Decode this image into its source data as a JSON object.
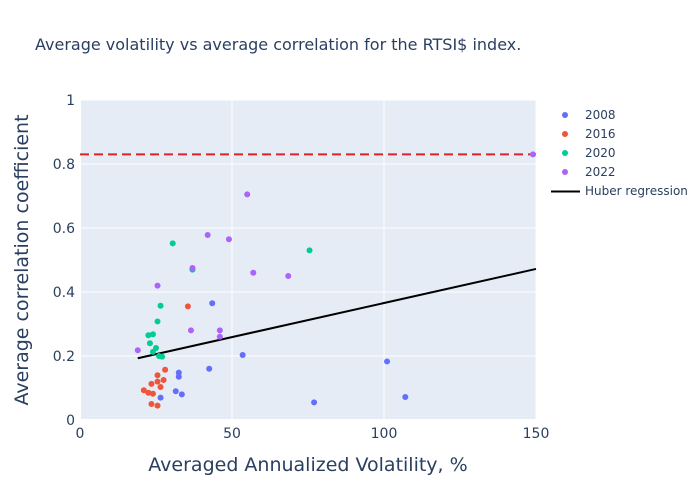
{
  "chart_data": {
    "type": "scatter",
    "title": "Average volatility vs average correlation for the RTSI$ index.",
    "xlabel": "Averaged Annualized Volatility, %",
    "ylabel": "Average correlation coefficient",
    "xlim": [
      0,
      150
    ],
    "ylim": [
      0,
      1
    ],
    "x_ticks": [
      "0",
      "50",
      "100",
      "150"
    ],
    "y_ticks": [
      "0",
      "0.2",
      "0.4",
      "0.6",
      "0.8",
      "1"
    ],
    "grid": true,
    "legend_position": "right",
    "series": [
      {
        "name": "2008",
        "color": "#636efa",
        "points": [
          [
            26.5,
            0.07
          ],
          [
            31.5,
            0.09
          ],
          [
            33.5,
            0.08
          ],
          [
            32.5,
            0.135
          ],
          [
            32.5,
            0.148
          ],
          [
            42.5,
            0.16
          ],
          [
            43.5,
            0.365
          ],
          [
            53.5,
            0.203
          ],
          [
            77,
            0.055
          ],
          [
            101,
            0.183
          ],
          [
            107,
            0.072
          ]
        ]
      },
      {
        "name": "2016",
        "color": "#ef553b",
        "points": [
          [
            21,
            0.093
          ],
          [
            22.5,
            0.085
          ],
          [
            24,
            0.082
          ],
          [
            23.5,
            0.113
          ],
          [
            23.5,
            0.05
          ],
          [
            25.5,
            0.045
          ],
          [
            25.5,
            0.12
          ],
          [
            25.5,
            0.14
          ],
          [
            26.5,
            0.103
          ],
          [
            27.5,
            0.125
          ],
          [
            28,
            0.157
          ],
          [
            35.5,
            0.355
          ]
        ]
      },
      {
        "name": "2020",
        "color": "#00cc96",
        "points": [
          [
            22.5,
            0.265
          ],
          [
            23,
            0.24
          ],
          [
            24,
            0.268
          ],
          [
            24,
            0.213
          ],
          [
            25,
            0.225
          ],
          [
            25.5,
            0.308
          ],
          [
            26,
            0.2
          ],
          [
            27,
            0.198
          ],
          [
            26.5,
            0.357
          ],
          [
            30.5,
            0.552
          ],
          [
            37,
            0.47
          ],
          [
            75.5,
            0.53
          ]
        ]
      },
      {
        "name": "2022",
        "color": "#ab63fa",
        "points": [
          [
            19,
            0.218
          ],
          [
            25.5,
            0.42
          ],
          [
            36.5,
            0.28
          ],
          [
            37,
            0.475
          ],
          [
            42,
            0.578
          ],
          [
            46,
            0.26
          ],
          [
            46,
            0.28
          ],
          [
            49,
            0.565
          ],
          [
            55,
            0.705
          ],
          [
            57,
            0.46
          ],
          [
            68.5,
            0.45
          ],
          [
            149,
            0.83
          ]
        ]
      }
    ],
    "lines": [
      {
        "name": "Huber regression",
        "color": "#000000",
        "style": "solid",
        "points": [
          [
            19,
            0.193
          ],
          [
            150,
            0.472
          ]
        ]
      }
    ],
    "hlines": [
      {
        "y": 0.83,
        "color": "#d62728",
        "style": "dashed"
      }
    ]
  }
}
